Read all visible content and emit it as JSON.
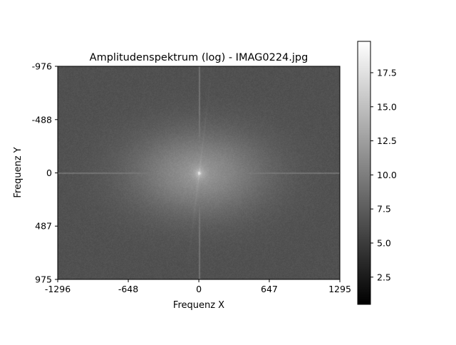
{
  "chart_data": {
    "type": "heatmap",
    "title": "Amplitudenspektrum (log) - IMAG0224.jpg",
    "xlabel": "Frequenz X",
    "ylabel": "Frequenz Y",
    "x_ticks": [
      -1296,
      -648,
      0,
      647,
      1295
    ],
    "x_tick_labels": [
      "-1296",
      "-648",
      "0",
      "647",
      "1295"
    ],
    "y_ticks": [
      -976,
      -488,
      0,
      487,
      975
    ],
    "y_tick_labels": [
      "-976",
      "-488",
      "0",
      "487",
      "975"
    ],
    "xlim": [
      -1296,
      1295
    ],
    "ylim": [
      975,
      -976
    ],
    "y_axis_inverted": true,
    "colormap": "gray",
    "colorbar": {
      "range": [
        0.5,
        19.8
      ],
      "ticks": [
        2.5,
        5.0,
        7.5,
        10.0,
        12.5,
        15.0,
        17.5
      ],
      "tick_labels": [
        "2.5",
        "5.0",
        "7.5",
        "10.0",
        "12.5",
        "15.0",
        "17.5"
      ]
    },
    "spectrum": {
      "background_level": 6.6,
      "center_peak_level": 17.5,
      "center_spread_x": 900,
      "center_spread_y": 560,
      "axis_line_level": 8.8,
      "diagonal_streak_level": 9.6
    },
    "grid": false
  }
}
